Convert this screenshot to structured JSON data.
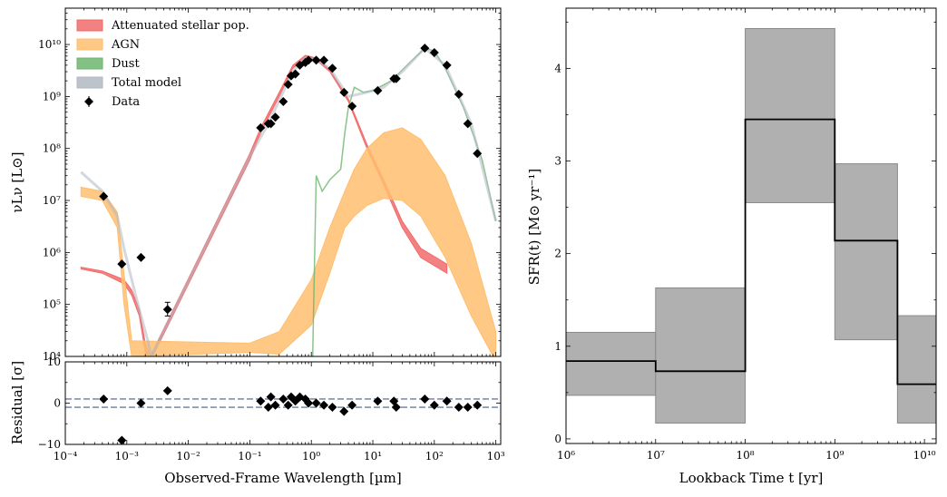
{
  "chart_data": [
    {
      "panel": "sed",
      "type": "line",
      "xlabel": "Observed-Frame Wavelength [µm]",
      "ylabel": "νLν [L⊙]",
      "xscale": "log",
      "yscale": "log",
      "xlim": [
        0.0001,
        1200
      ],
      "ylim": [
        10000,
        50000000000
      ],
      "xticks": [
        "10⁻⁴",
        "10⁻³",
        "10⁻²",
        "10⁻¹",
        "10⁰",
        "10¹",
        "10²",
        "10³"
      ],
      "yticks": [
        "10⁴",
        "10⁵",
        "10⁶",
        "10⁷",
        "10⁸",
        "10⁹",
        "10¹⁰"
      ],
      "legend_position": "top-left",
      "legend": [
        {
          "label": "Attenuated stellar pop.",
          "color": "#f26b6b"
        },
        {
          "label": "AGN",
          "color": "#ffbe6e"
        },
        {
          "label": "Dust",
          "color": "#6db56d"
        },
        {
          "label": "Total model",
          "color": "#b0b8c2"
        },
        {
          "label": "Data",
          "color": "#000000"
        }
      ],
      "series": [
        {
          "name": "Attenuated stellar pop.",
          "color": "#f26b6b",
          "x": [
            0.00018,
            0.0004,
            0.0009,
            0.0012,
            0.0016,
            0.002,
            0.0024,
            0.1,
            0.15,
            0.3,
            0.5,
            0.8,
            1.2,
            2,
            4,
            8,
            15,
            30,
            60,
            160
          ],
          "y_low": [
            480000,
            400000,
            250000,
            150000,
            60000,
            12000,
            8000,
            60000000,
            200000000,
            1000000000,
            3500000000,
            5500000000,
            5000000000,
            3000000000,
            800000000,
            100000000,
            20000000,
            3000000,
            800000,
            400000
          ],
          "y_high": [
            520000,
            440000,
            300000,
            190000,
            80000,
            18000,
            10000,
            80000000,
            250000000,
            1200000000,
            4000000000,
            6200000000,
            5500000000,
            3300000000,
            900000000,
            120000000,
            25000000,
            4000000,
            1200000,
            600000
          ]
        },
        {
          "name": "AGN",
          "color": "#ffbe6e",
          "x": [
            0.00018,
            0.0004,
            0.0007,
            0.0009,
            0.0012,
            0.1,
            0.3,
            1,
            2,
            3.5,
            5,
            8,
            15,
            30,
            60,
            150,
            400,
            1000
          ],
          "y_low": [
            12000000,
            10000000,
            3000000,
            100000,
            10000,
            12000,
            11000,
            40000,
            400000,
            3000000,
            5000000,
            8000000,
            11000000,
            10000000,
            5000000,
            800000,
            60000,
            8000
          ],
          "y_high": [
            18000000,
            15000000,
            6000000,
            400000,
            20000,
            18000,
            30000,
            300000,
            3000000,
            15000000,
            40000000,
            100000000,
            200000000,
            250000000,
            150000000,
            30000000,
            1500000,
            30000
          ]
        },
        {
          "name": "Dust",
          "color": "#6db56d",
          "x": [
            1.05,
            1.2,
            1.5,
            2,
            3,
            3.5,
            4,
            5,
            7,
            10,
            20,
            40,
            70,
            100,
            150,
            300,
            600,
            1000
          ],
          "y": [
            10000,
            30000000,
            15000000,
            25000000,
            40000000,
            200000000,
            600000000,
            1500000000,
            1200000000,
            1300000000,
            2000000000,
            4500000000,
            8500000000,
            7500000000,
            3500000000,
            600000000,
            60000000,
            4000000
          ]
        },
        {
          "name": "Total model",
          "color": "#b0b8c2",
          "x": [
            0.00018,
            0.0004,
            0.0007,
            0.0009,
            0.0012,
            0.0016,
            0.0022,
            0.0025,
            0.1,
            0.2,
            0.5,
            0.8,
            1.2,
            2,
            4,
            8,
            15,
            30,
            70,
            150,
            400,
            1000
          ],
          "y": [
            35000000,
            15000000,
            5000000,
            1200000,
            300000,
            80000,
            20000,
            10000,
            70000000,
            300000000,
            3000000000,
            5500000000,
            5000000000,
            3500000000,
            1000000000,
            1200000000,
            1500000000,
            3000000000,
            8500000000,
            4000000000,
            300000000,
            4000000
          ]
        }
      ],
      "data_points": {
        "name": "Data",
        "color": "#000000",
        "x": [
          0.00042,
          0.00083,
          0.0017,
          0.0046,
          0.15,
          0.2,
          0.22,
          0.26,
          0.35,
          0.42,
          0.47,
          0.55,
          0.65,
          0.8,
          0.9,
          1.2,
          1.6,
          2.2,
          3.4,
          4.6,
          12,
          22,
          24,
          70,
          100,
          160,
          250,
          350,
          500
        ],
        "y": [
          12000000,
          600000,
          800000,
          80000,
          250000000,
          300000000,
          300000000,
          400000000,
          800000000,
          1700000000,
          2500000000,
          2700000000,
          4000000000,
          4500000000,
          5000000000,
          5000000000,
          5000000000,
          3500000000,
          1200000000,
          650000000,
          1300000000,
          2200000000,
          2200000000,
          8500000000,
          7000000000,
          4000000000,
          1100000000,
          300000000,
          80000000
        ],
        "yerr_low": [
          0,
          0,
          0,
          20000,
          0,
          0,
          0,
          0,
          0,
          0,
          0,
          0,
          0,
          0,
          0,
          0,
          0,
          0,
          0,
          0,
          0,
          0,
          0,
          0,
          0,
          0,
          0,
          0,
          0
        ],
        "yerr_high": [
          0,
          0,
          0,
          30000,
          0,
          0,
          0,
          0,
          0,
          0,
          0,
          0,
          0,
          0,
          0,
          0,
          0,
          0,
          0,
          0,
          0,
          0,
          0,
          0,
          0,
          0,
          0,
          0,
          0
        ]
      }
    },
    {
      "panel": "residual",
      "type": "scatter",
      "xlabel": "Observed-Frame Wavelength [µm]",
      "ylabel": "Residual [σ]",
      "xscale": "log",
      "xlim": [
        0.0001,
        1200
      ],
      "ylim": [
        -10,
        10
      ],
      "xticks": [
        "10⁻⁴",
        "10⁻³",
        "10⁻²",
        "10⁻¹",
        "10⁰",
        "10¹",
        "10²",
        "10³"
      ],
      "yticks": [
        "−10",
        "0",
        "10"
      ],
      "reference_lines": [
        1,
        -1
      ],
      "line_color": "#6b7c96",
      "points": {
        "x": [
          0.00042,
          0.00083,
          0.0017,
          0.0046,
          0.15,
          0.2,
          0.22,
          0.26,
          0.35,
          0.42,
          0.47,
          0.55,
          0.65,
          0.8,
          0.9,
          1.2,
          1.6,
          2.2,
          3.4,
          4.6,
          12,
          22,
          24,
          70,
          100,
          160,
          250,
          350,
          500
        ],
        "y": [
          1,
          -9,
          0,
          3,
          0.5,
          -1,
          1.5,
          -0.5,
          1,
          -0.5,
          1.5,
          0.5,
          1.5,
          1,
          0,
          0,
          -0.5,
          -1,
          -2,
          -0.5,
          0.5,
          0.5,
          -1,
          1,
          -0.5,
          0.5,
          -1,
          -1,
          -0.5
        ]
      }
    },
    {
      "panel": "sfh",
      "type": "line",
      "xlabel": "Lookback Time t [yr]",
      "ylabel": "SFR(t) [M⊙ yr⁻¹]",
      "xscale": "log",
      "xlim": [
        1000000,
        13500000000
      ],
      "ylim": [
        -0.05,
        4.65
      ],
      "xticks": [
        "10⁶",
        "10⁷",
        "10⁸",
        "10⁹",
        "10¹⁰"
      ],
      "yticks": [
        "0",
        "1",
        "2",
        "3",
        "4"
      ],
      "band_color": "#b0b0b0",
      "line_color": "#000000",
      "bins": [
        {
          "t_start": 1000000,
          "t_end": 10000000,
          "sfr": 0.84,
          "low": 0.47,
          "high": 1.15
        },
        {
          "t_start": 10000000,
          "t_end": 100000000,
          "sfr": 0.73,
          "low": 0.17,
          "high": 1.63
        },
        {
          "t_start": 100000000,
          "t_end": 1000000000,
          "sfr": 3.45,
          "low": 2.55,
          "high": 4.43
        },
        {
          "t_start": 1000000000,
          "t_end": 5000000000,
          "sfr": 2.14,
          "low": 1.07,
          "high": 2.97
        },
        {
          "t_start": 5000000000,
          "t_end": 13500000000,
          "sfr": 0.59,
          "low": 0.17,
          "high": 1.33
        }
      ]
    }
  ]
}
